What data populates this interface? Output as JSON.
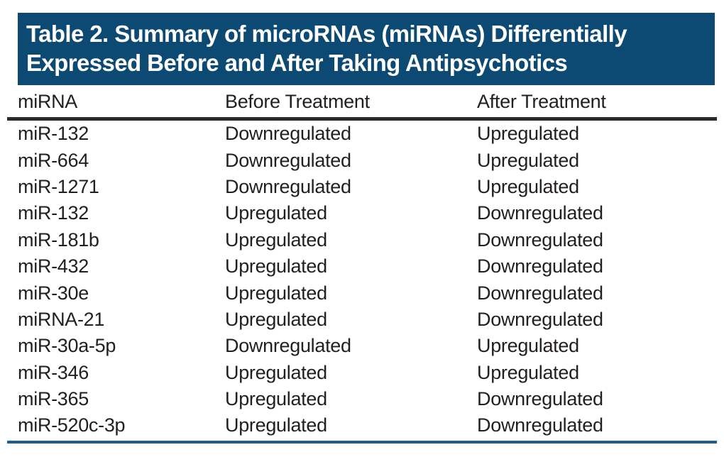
{
  "table": {
    "title_line1": "Table 2. Summary of microRNAs (miRNAs) Differentially",
    "title_line2": "Expressed Before and After Taking Antipsychotics",
    "columns": {
      "mirna": "miRNA",
      "before": "Before Treatment",
      "after": "After Treatment"
    },
    "rows": [
      [
        "miR-132",
        "Downregulated",
        "Upregulated"
      ],
      [
        "miR-664",
        "Downregulated",
        "Upregulated"
      ],
      [
        "miR-1271",
        "Downregulated",
        "Upregulated"
      ],
      [
        "miR-132",
        "Upregulated",
        "Downregulated"
      ],
      [
        "miR-181b",
        "Upregulated",
        "Downregulated"
      ],
      [
        "miR-432",
        "Upregulated",
        "Downregulated"
      ],
      [
        "miR-30e",
        "Upregulated",
        "Downregulated"
      ],
      [
        "miRNA-21",
        "Upregulated",
        "Downregulated"
      ],
      [
        "miR-30a-5p",
        "Downregulated",
        "Upregulated"
      ],
      [
        "miR-346",
        "Upregulated",
        "Upregulated"
      ],
      [
        "miR-365",
        "Upregulated",
        "Downregulated"
      ],
      [
        "miR-520c-3p",
        "Upregulated",
        "Downregulated"
      ]
    ],
    "colors": {
      "banner_bg": "#0d4a73",
      "banner_text": "#ffffff",
      "body_text": "#231f20",
      "header_rule": "#2a2a2a",
      "bottom_rule": "#1b5d90"
    }
  }
}
